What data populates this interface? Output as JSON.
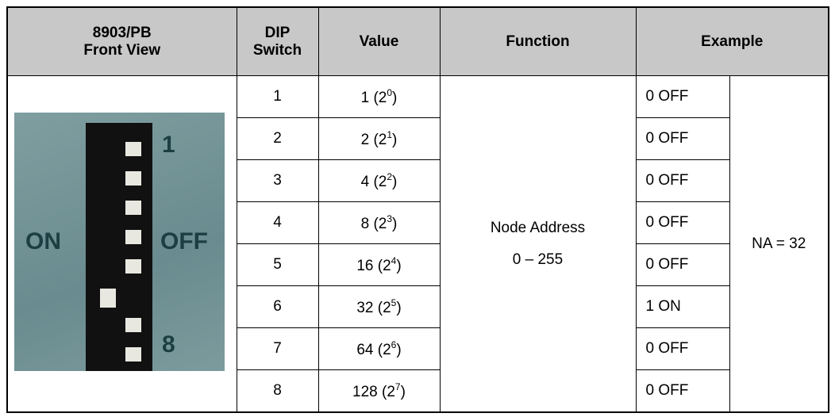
{
  "header": {
    "front_view": [
      "8903/PB",
      "Front View"
    ],
    "dip_switch": [
      "DIP",
      "Switch"
    ],
    "value": "Value",
    "function": "Function",
    "example": "Example"
  },
  "photo": {
    "labels": [
      "1",
      "ON",
      "OFF",
      "8"
    ]
  },
  "rows": [
    {
      "switch": "1",
      "value": {
        "text": "1 (2",
        "sup": "0",
        "tail": ")"
      },
      "example": "0 OFF"
    },
    {
      "switch": "2",
      "value": {
        "text": "2 (2",
        "sup": "1",
        "tail": ")"
      },
      "example": "0 OFF"
    },
    {
      "switch": "3",
      "value": {
        "text": "4 (2",
        "sup": "2",
        "tail": ")"
      },
      "example": "0 OFF"
    },
    {
      "switch": "4",
      "value": {
        "text": "8 (2",
        "sup": "3",
        "tail": ")"
      },
      "example": "0 OFF"
    },
    {
      "switch": "5",
      "value": {
        "text": "16 (2",
        "sup": "4",
        "tail": ")"
      },
      "example": "0 OFF"
    },
    {
      "switch": "6",
      "value": {
        "text": "32 (2",
        "sup": "5",
        "tail": ")"
      },
      "example": "1 ON"
    },
    {
      "switch": "7",
      "value": {
        "text": "64 (2",
        "sup": "6",
        "tail": ")"
      },
      "example": "0 OFF"
    },
    {
      "switch": "8",
      "value": {
        "text": "128 (2",
        "sup": "7",
        "tail": ")"
      },
      "example": "0 OFF"
    }
  ],
  "function": [
    "Node Address",
    "0 – 255"
  ],
  "example_result": "NA = 32"
}
